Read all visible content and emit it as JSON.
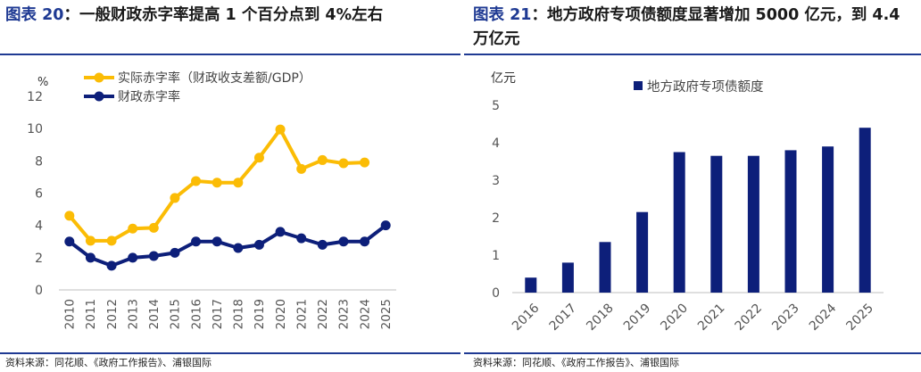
{
  "left": {
    "title_prefix": "图表 20",
    "title_text": "：一般财政赤字率提高 1 个百分点到 4%左右",
    "source": "资料来源：同花顺、《政府工作报告》、浦银国际"
  },
  "right": {
    "title_prefix": "图表 21",
    "title_text": "：地方政府专项债额度显著增加 5000 亿元，到 4.4 万亿元",
    "source": "资料来源：同花顺、《政府工作报告》、浦银国际"
  },
  "colors": {
    "gold": "#FBBC05",
    "navy": "#0D1F7A",
    "brand": "#1f3a93"
  },
  "chart_data": [
    {
      "type": "line",
      "title": "",
      "ylabel": "%",
      "xlabel": "",
      "ylim": [
        0,
        12
      ],
      "yticks": [
        0,
        2,
        4,
        6,
        8,
        10,
        12
      ],
      "grid": false,
      "legend": "top-left",
      "categories": [
        "2010",
        "2011",
        "2012",
        "2013",
        "2014",
        "2015",
        "2016",
        "2017",
        "2018",
        "2019",
        "2020",
        "2021",
        "2022",
        "2023",
        "2024",
        "2025"
      ],
      "series": [
        {
          "name": "实际赤字率（财政收支差额/GDP）",
          "color": "#FBBC05",
          "values": [
            4.6,
            3.05,
            3.05,
            3.8,
            3.85,
            5.7,
            6.75,
            6.65,
            6.65,
            8.2,
            9.95,
            7.5,
            8.05,
            7.85,
            7.9,
            null
          ]
        },
        {
          "name": "财政赤字率",
          "color": "#0D1F7A",
          "values": [
            3.0,
            2.0,
            1.5,
            2.0,
            2.1,
            2.3,
            3.0,
            3.0,
            2.6,
            2.8,
            3.6,
            3.2,
            2.8,
            3.0,
            3.0,
            4.0
          ]
        }
      ]
    },
    {
      "type": "bar",
      "title": "",
      "ylabel": "亿元",
      "xlabel": "",
      "ylim": [
        0,
        5
      ],
      "yticks": [
        0,
        1,
        2,
        3,
        4,
        5
      ],
      "grid": false,
      "legend": "top-center",
      "categories": [
        "2016",
        "2017",
        "2018",
        "2019",
        "2020",
        "2021",
        "2022",
        "2023",
        "2024",
        "2025"
      ],
      "series": [
        {
          "name": "地方政府专项债额度",
          "color": "#0D1F7A",
          "values": [
            0.4,
            0.8,
            1.35,
            2.15,
            3.75,
            3.65,
            3.65,
            3.8,
            3.9,
            4.4
          ]
        }
      ]
    }
  ]
}
